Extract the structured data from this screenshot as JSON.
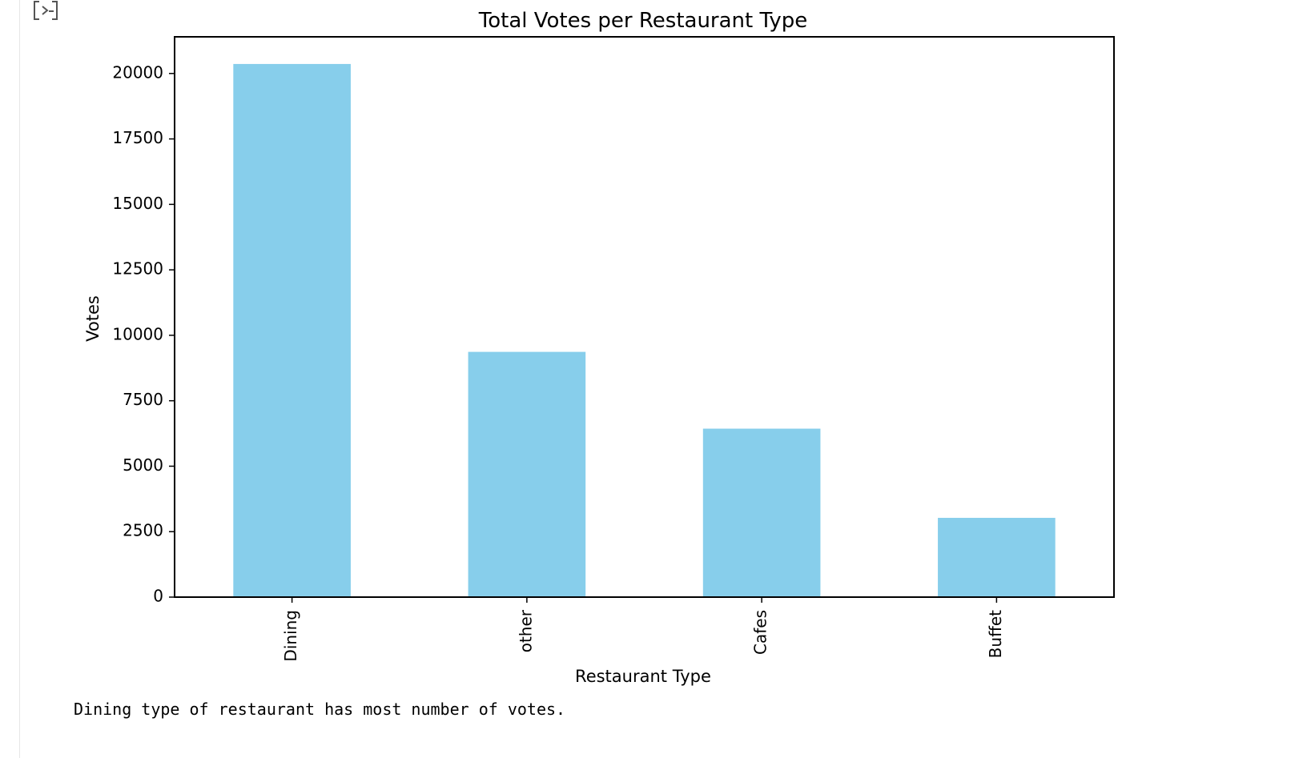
{
  "output_cell": {
    "stdout": "Dining type of restaurant has most number of votes."
  },
  "chart_data": {
    "type": "bar",
    "title": "Total Votes per Restaurant Type",
    "xlabel": "Restaurant Type",
    "ylabel": "Votes",
    "categories": [
      "Dining",
      "other",
      "Cafes",
      "Buffet"
    ],
    "values": [
      20363,
      9367,
      6434,
      3028
    ],
    "ylim": [
      0,
      21400
    ],
    "yticks": [
      0,
      2500,
      5000,
      7500,
      10000,
      12500,
      15000,
      17500,
      20000
    ],
    "ytick_labels": [
      "0",
      "2500",
      "5000",
      "7500",
      "10000",
      "12500",
      "15000",
      "17500",
      "20000"
    ],
    "bar_color": "#87ceeb",
    "grid": false,
    "legend": "none"
  }
}
